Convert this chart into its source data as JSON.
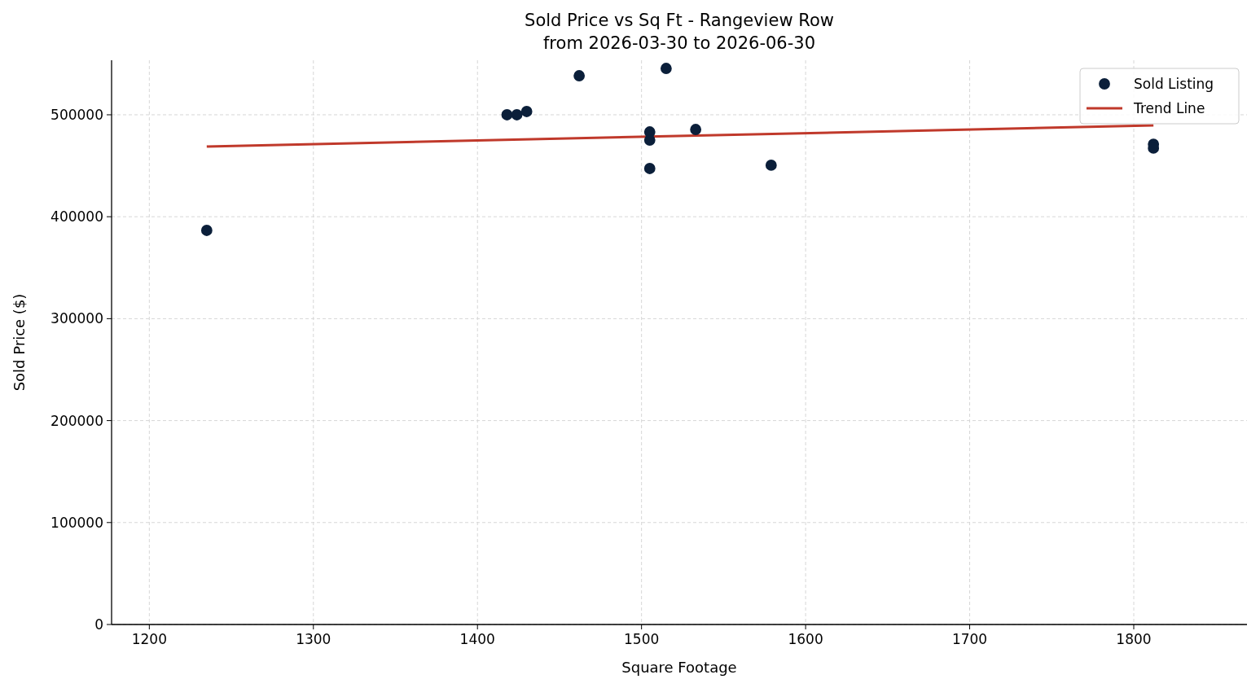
{
  "chart_data": {
    "type": "scatter",
    "title": "Sold Price vs Sq Ft - Rangeview Row\nfrom 2026-03-30 to 2026-06-30",
    "xlabel": "Square Footage",
    "ylabel": "Sold Price ($)",
    "xlim": [
      1177,
      1869
    ],
    "ylim": [
      0,
      553500
    ],
    "xticks": [
      1200,
      1300,
      1400,
      1500,
      1600,
      1700,
      1800
    ],
    "yticks": [
      0,
      100000,
      200000,
      300000,
      400000,
      500000
    ],
    "grid": true,
    "legend": "top right",
    "series": [
      {
        "name": "Sold Listing",
        "marker": "circle",
        "color": "#0b1f3a",
        "x": [
          1235,
          1418,
          1424,
          1430,
          1462,
          1505,
          1505,
          1505,
          1515,
          1533,
          1579,
          1812,
          1812
        ],
        "values": [
          386600,
          500000,
          500000,
          503200,
          538300,
          483200,
          475200,
          447300,
          545500,
          485600,
          450500,
          471200,
          467300
        ]
      },
      {
        "name": "Trend Line",
        "type": "line",
        "marker": "none",
        "color": "#c0392b",
        "x": [
          1235,
          1812
        ],
        "values": [
          468900,
          489600
        ]
      }
    ]
  }
}
